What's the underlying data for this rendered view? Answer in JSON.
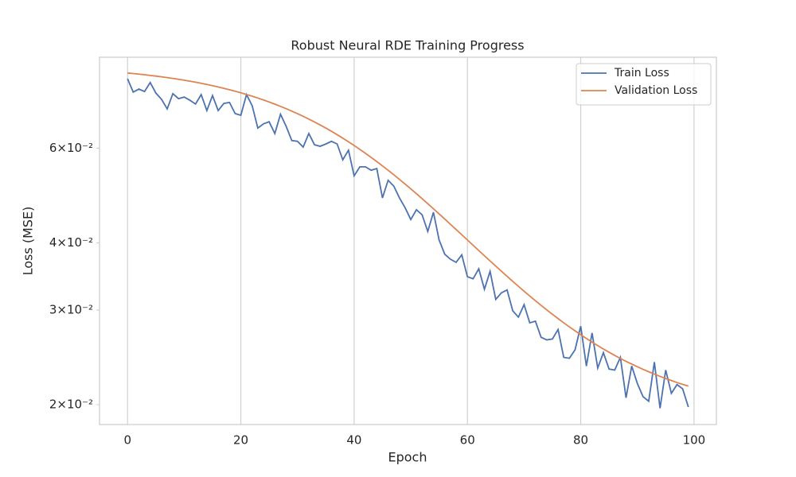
{
  "chart_data": {
    "type": "line",
    "title": "Robust Neural RDE Training Progress",
    "x_label": "Epoch",
    "y_label": "Loss (MSE)",
    "x": [
      0,
      1,
      2,
      3,
      4,
      5,
      6,
      7,
      8,
      9,
      10,
      11,
      12,
      13,
      14,
      15,
      16,
      17,
      18,
      19,
      20,
      21,
      22,
      23,
      24,
      25,
      26,
      27,
      28,
      29,
      30,
      31,
      32,
      33,
      34,
      35,
      36,
      37,
      38,
      39,
      40,
      41,
      42,
      43,
      44,
      45,
      46,
      47,
      48,
      49,
      50,
      51,
      52,
      53,
      54,
      55,
      56,
      57,
      58,
      59,
      60,
      61,
      62,
      63,
      64,
      65,
      66,
      67,
      68,
      69,
      70,
      71,
      72,
      73,
      74,
      75,
      76,
      77,
      78,
      79,
      80,
      81,
      82,
      83,
      84,
      85,
      86,
      87,
      88,
      89,
      90,
      91,
      92,
      93,
      94,
      95,
      96,
      97,
      98,
      99
    ],
    "series": [
      {
        "name": "Train Loss",
        "color": "#4c72b0",
        "values": [
          0.0808,
          0.0763,
          0.0773,
          0.0765,
          0.0795,
          0.076,
          0.074,
          0.071,
          0.0758,
          0.0742,
          0.0747,
          0.0737,
          0.0725,
          0.0755,
          0.0705,
          0.0752,
          0.0705,
          0.0727,
          0.073,
          0.0696,
          0.0691,
          0.0755,
          0.072,
          0.0654,
          0.0666,
          0.0672,
          0.0639,
          0.0694,
          0.0659,
          0.062,
          0.0618,
          0.0603,
          0.0639,
          0.0609,
          0.0605,
          0.0611,
          0.0618,
          0.0611,
          0.0571,
          0.0595,
          0.0533,
          0.0554,
          0.0554,
          0.0546,
          0.055,
          0.0485,
          0.0523,
          0.051,
          0.0485,
          0.0465,
          0.0442,
          0.0461,
          0.0451,
          0.042,
          0.0456,
          0.0405,
          0.0381,
          0.0373,
          0.0368,
          0.038,
          0.0346,
          0.0343,
          0.0358,
          0.0328,
          0.0354,
          0.0314,
          0.0323,
          0.0327,
          0.0299,
          0.0291,
          0.0307,
          0.0284,
          0.0286,
          0.0267,
          0.0264,
          0.0265,
          0.0276,
          0.0245,
          0.0244,
          0.0253,
          0.028,
          0.0236,
          0.0272,
          0.0234,
          0.025,
          0.0233,
          0.0232,
          0.0245,
          0.0206,
          0.0236,
          0.0219,
          0.0207,
          0.0203,
          0.024,
          0.0197,
          0.0232,
          0.021,
          0.0218,
          0.0214,
          0.0198
        ]
      },
      {
        "name": "Validation Loss",
        "color": "#dd8452",
        "values": [
          0.08282,
          0.08263,
          0.08242,
          0.0822,
          0.08197,
          0.08173,
          0.08147,
          0.0812,
          0.08092,
          0.08062,
          0.0803,
          0.07996,
          0.07961,
          0.07924,
          0.07885,
          0.07844,
          0.07801,
          0.07756,
          0.07709,
          0.0766,
          0.07608,
          0.07554,
          0.07498,
          0.07439,
          0.07378,
          0.07314,
          0.07248,
          0.07179,
          0.07108,
          0.07034,
          0.06958,
          0.06879,
          0.06798,
          0.06715,
          0.06629,
          0.06541,
          0.06451,
          0.06358,
          0.06264,
          0.06168,
          0.0607,
          0.05971,
          0.05871,
          0.05769,
          0.05667,
          0.05563,
          0.05459,
          0.05355,
          0.0525,
          0.05145,
          0.05041,
          0.04937,
          0.04833,
          0.04731,
          0.04629,
          0.04529,
          0.0443,
          0.04332,
          0.04236,
          0.04142,
          0.0405,
          0.03959,
          0.03871,
          0.03785,
          0.03702,
          0.03621,
          0.03542,
          0.03466,
          0.03392,
          0.03321,
          0.03252,
          0.03186,
          0.03122,
          0.03061,
          0.03002,
          0.02946,
          0.02892,
          0.0284,
          0.02791,
          0.02744,
          0.02699,
          0.02656,
          0.02615,
          0.02576,
          0.02539,
          0.02504,
          0.0247,
          0.02438,
          0.02408,
          0.0238,
          0.02353,
          0.02327,
          0.02303,
          0.0228,
          0.02258,
          0.02237,
          0.02218,
          0.02199,
          0.02182,
          0.02166
        ]
      }
    ],
    "xlim": [
      -4.95,
      103.95
    ],
    "xticks": [
      0,
      20,
      40,
      60,
      80,
      100
    ],
    "ylim": [
      0.01837,
      0.0886
    ],
    "yscale": "log",
    "yticks": [
      {
        "value": 0.02,
        "label": "2×10⁻²"
      },
      {
        "value": 0.03,
        "label": "3×10⁻²"
      },
      {
        "value": 0.04,
        "label": "4×10⁻²"
      },
      {
        "value": 0.06,
        "label": "6×10⁻²"
      }
    ],
    "grid": "x",
    "legend": "upper right"
  }
}
